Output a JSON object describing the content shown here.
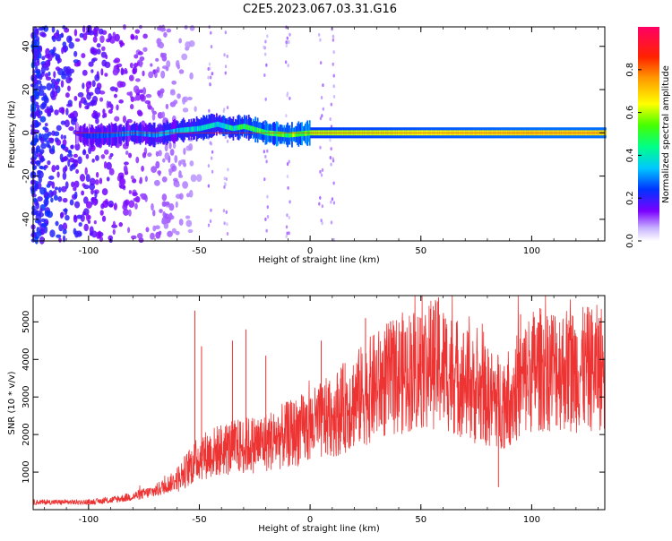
{
  "title": "C2E5.2023.067.03.31.G16",
  "chart_data": [
    {
      "type": "heatmap",
      "xlabel": "Height of straight line (km)",
      "ylabel": "Frequency (Hz)",
      "xlim": [
        -125,
        133
      ],
      "ylim": [
        -50,
        49
      ],
      "x_ticks": [
        -100,
        -50,
        0,
        50,
        100
      ],
      "y_ticks": [
        -40,
        -20,
        0,
        20,
        40
      ],
      "colorbar": {
        "label": "Normalized spectral amplitude",
        "range": [
          0,
          1
        ],
        "ticks": [
          "0.0",
          "0.2",
          "0.4",
          "0.6",
          "0.8"
        ]
      },
      "band_profile": [
        {
          "x": -106,
          "freq": 0,
          "amp": 0.18
        },
        {
          "x": -100,
          "freq": -1.5,
          "amp": 0.28
        },
        {
          "x": -90,
          "freq": -1,
          "amp": 0.32
        },
        {
          "x": -80,
          "freq": 0,
          "amp": 0.34
        },
        {
          "x": -70,
          "freq": -1,
          "amp": 0.36
        },
        {
          "x": -60,
          "freq": 1,
          "amp": 0.4
        },
        {
          "x": -50,
          "freq": 2,
          "amp": 0.45
        },
        {
          "x": -42,
          "freq": 4,
          "amp": 0.45
        },
        {
          "x": -35,
          "freq": 2,
          "amp": 0.5
        },
        {
          "x": -30,
          "freq": 3,
          "amp": 0.55
        },
        {
          "x": -20,
          "freq": 0,
          "amp": 0.6
        },
        {
          "x": -10,
          "freq": -1,
          "amp": 0.62
        },
        {
          "x": 0,
          "freq": 0,
          "amp": 0.7
        },
        {
          "x": 20,
          "freq": 0,
          "amp": 0.72
        },
        {
          "x": 40,
          "freq": 0,
          "amp": 0.74
        },
        {
          "x": 60,
          "freq": 0,
          "amp": 0.76
        },
        {
          "x": 80,
          "freq": 0,
          "amp": 0.78
        },
        {
          "x": 100,
          "freq": 0,
          "amp": 0.8
        },
        {
          "x": 133,
          "freq": 0,
          "amp": 0.8
        }
      ]
    },
    {
      "type": "line",
      "xlabel": "Height of straight line (km)",
      "ylabel": "SNR (10 * v/v)",
      "xlim": [
        -125,
        133
      ],
      "ylim": [
        0,
        5700
      ],
      "x_ticks": [
        -100,
        -50,
        0,
        50,
        100
      ],
      "y_ticks": [
        1000,
        2000,
        3000,
        4000,
        5000
      ],
      "series": [
        {
          "color": "#ee3333",
          "baseline": [
            [
              -125,
              200
            ],
            [
              -100,
              200
            ],
            [
              -90,
              250
            ],
            [
              -80,
              350
            ],
            [
              -70,
              500
            ],
            [
              -60,
              800
            ],
            [
              -55,
              1100
            ],
            [
              -50,
              1400
            ],
            [
              -40,
              1600
            ],
            [
              -30,
              1700
            ],
            [
              -20,
              1800
            ],
            [
              -10,
              2000
            ],
            [
              0,
              2200
            ],
            [
              10,
              2500
            ],
            [
              20,
              2900
            ],
            [
              30,
              3300
            ],
            [
              40,
              3600
            ],
            [
              50,
              3800
            ],
            [
              55,
              3900
            ],
            [
              60,
              3800
            ],
            [
              70,
              3400
            ],
            [
              75,
              3100
            ],
            [
              80,
              3000
            ],
            [
              85,
              2900
            ],
            [
              90,
              3000
            ],
            [
              100,
              3700
            ],
            [
              110,
              3800
            ],
            [
              120,
              3700
            ],
            [
              133,
              3800
            ]
          ],
          "spikes": [
            [
              -52,
              5300
            ],
            [
              -49,
              4350
            ],
            [
              -35,
              4500
            ],
            [
              -29,
              4800
            ],
            [
              -20,
              4100
            ],
            [
              5,
              4500
            ],
            [
              25,
              5100
            ],
            [
              50,
              5100
            ],
            [
              58,
              5650
            ],
            [
              85,
              600
            ],
            [
              95,
              5200
            ],
            [
              130,
              4600
            ]
          ]
        }
      ]
    }
  ]
}
